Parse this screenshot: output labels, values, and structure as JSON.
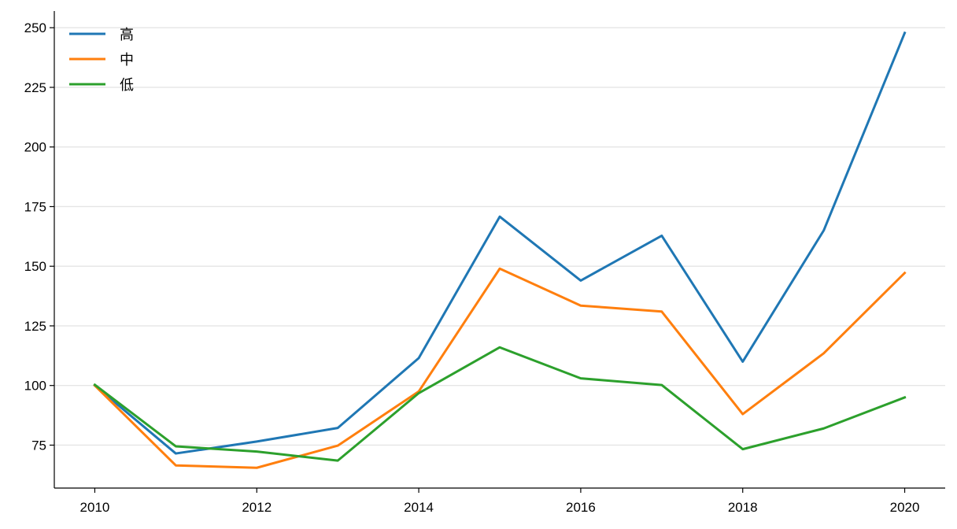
{
  "chart_data": {
    "type": "line",
    "x": [
      2010,
      2011,
      2012,
      2013,
      2014,
      2015,
      2016,
      2017,
      2018,
      2019,
      2020
    ],
    "x_ticks": [
      2010,
      2012,
      2014,
      2016,
      2018,
      2020
    ],
    "y_ticks": [
      75,
      100,
      125,
      150,
      175,
      200,
      225,
      250
    ],
    "xlim": [
      2009.5,
      2020.5
    ],
    "ylim": [
      57,
      257
    ],
    "grid": "horizontal",
    "legend_position": "top-left",
    "series": [
      {
        "name": "高",
        "color": "#1f77b4",
        "values": [
          100,
          71.5,
          76.5,
          82.2,
          111.5,
          170.8,
          144,
          162.8,
          110,
          165,
          247.8
        ]
      },
      {
        "name": "中",
        "color": "#ff7f0e",
        "values": [
          100,
          66.5,
          65.5,
          74.8,
          97.5,
          149,
          133.5,
          131,
          88,
          113.5,
          147.2
        ]
      },
      {
        "name": "低",
        "color": "#2ca02c",
        "values": [
          100.3,
          74.5,
          72.3,
          68.5,
          96.8,
          116,
          103,
          100.2,
          73.3,
          82,
          95
        ]
      }
    ]
  }
}
